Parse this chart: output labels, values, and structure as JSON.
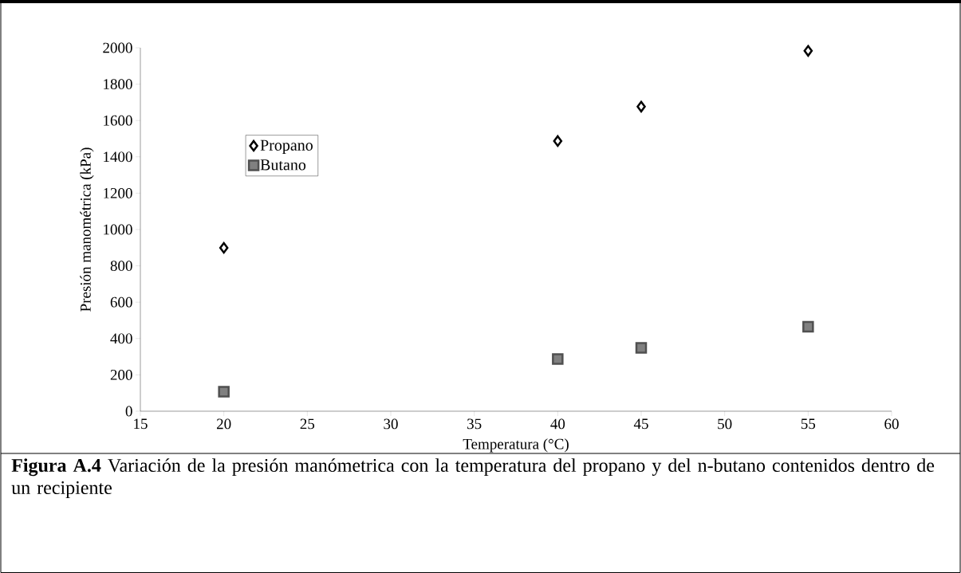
{
  "chart_data": {
    "type": "scatter",
    "title": "**Figura A.4** Variación de la presión manómetrica con la temperatura del propano y del n-butano contenidos dentro de un recipiente",
    "xlabel": "Temperatura (°C)",
    "ylabel": "Presión manométrica (kPa)",
    "x": [
      20,
      40,
      45,
      55
    ],
    "series": [
      {
        "name": "Propano",
        "color": "#000000",
        "marker": "diamond",
        "values": [
          899,
          1487,
          1676,
          1983
        ]
      },
      {
        "name": "Butano",
        "color": "#808080",
        "marker": "square",
        "values": [
          107,
          287,
          349,
          465
        ]
      }
    ],
    "xlim": [
      15,
      60
    ],
    "xticks": [
      15,
      20,
      25,
      30,
      35,
      40,
      45,
      50,
      55,
      60
    ],
    "ylim": [
      0,
      2000
    ],
    "yticks": [
      0,
      200,
      400,
      600,
      800,
      1000,
      1200,
      1400,
      1600,
      1800,
      2000
    ],
    "grid": false,
    "legend": "top left"
  }
}
